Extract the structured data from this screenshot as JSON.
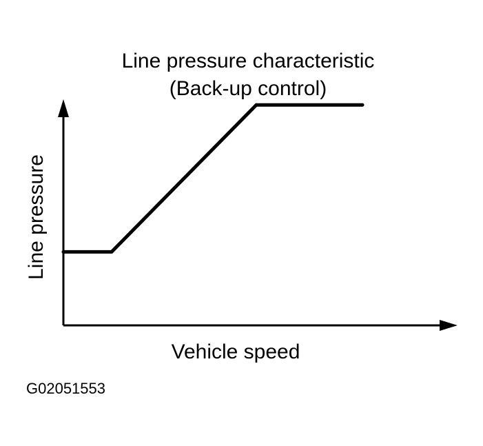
{
  "chart_data": {
    "type": "line",
    "title": "Line pressure characteristic",
    "subtitle": "(Back-up control)",
    "xlabel": "Vehicle speed",
    "ylabel": "Line pressure",
    "x_ticks": [],
    "y_ticks": [],
    "grid": false,
    "legend": "none",
    "xlim": [
      0,
      100
    ],
    "ylim": [
      0,
      100
    ],
    "series": [
      {
        "x": [
          0,
          12.5,
          50,
          77.5
        ],
        "y": [
          32.5,
          32.5,
          97.5,
          97.5
        ]
      }
    ]
  },
  "figure_id": "G02051553",
  "colors": {
    "line": "#000000",
    "axis": "#000000",
    "background": "#ffffff"
  }
}
